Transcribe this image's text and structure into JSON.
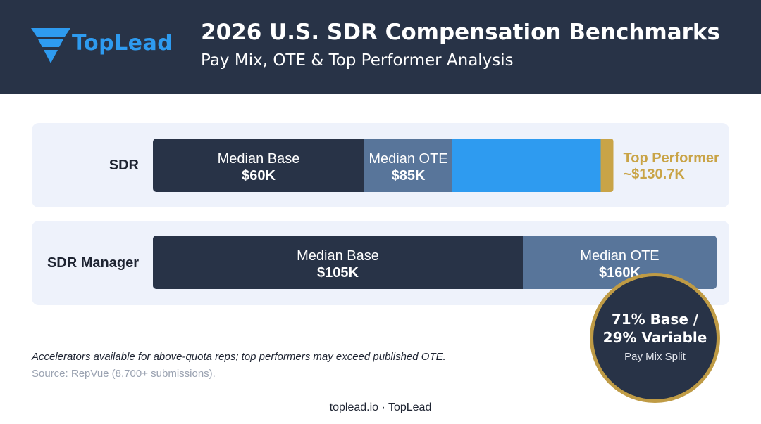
{
  "header": {
    "logo_text": "TopLead",
    "title": "2026 U.S. SDR Compensation Benchmarks",
    "subtitle": "Pay Mix, OTE & Top Performer Analysis"
  },
  "colors": {
    "header_bg": "#283347",
    "base": "#283347",
    "ote": "#58759a",
    "upside": "#2e9bf0",
    "top_performer": "#c9a447",
    "card_bg": "#eef2fb"
  },
  "chart_data": {
    "type": "bar",
    "orientation": "horizontal",
    "stacked": true,
    "unit": "K USD",
    "rows": [
      {
        "label": "SDR",
        "segments": [
          {
            "name": "Median Base",
            "value_label": "$60K",
            "value": 60
          },
          {
            "name": "Median OTE",
            "value_label": "$85K",
            "value": 85
          }
        ],
        "top_performer": {
          "name": "Top Performer",
          "value_label": "~$130.7K",
          "value": 130.7
        }
      },
      {
        "label": "SDR Manager",
        "segments": [
          {
            "name": "Median Base",
            "value_label": "$105K",
            "value": 105
          },
          {
            "name": "Median OTE",
            "value_label": "$160K",
            "value": 160
          }
        ]
      }
    ]
  },
  "badge": {
    "line1": "71% Base /",
    "line2": "29% Variable",
    "caption": "Pay Mix Split"
  },
  "note": "Accelerators available for above-quota reps; top performers may exceed published OTE.",
  "source": "Source: RepVue (8,700+ submissions).",
  "footer": "toplead.io · TopLead"
}
